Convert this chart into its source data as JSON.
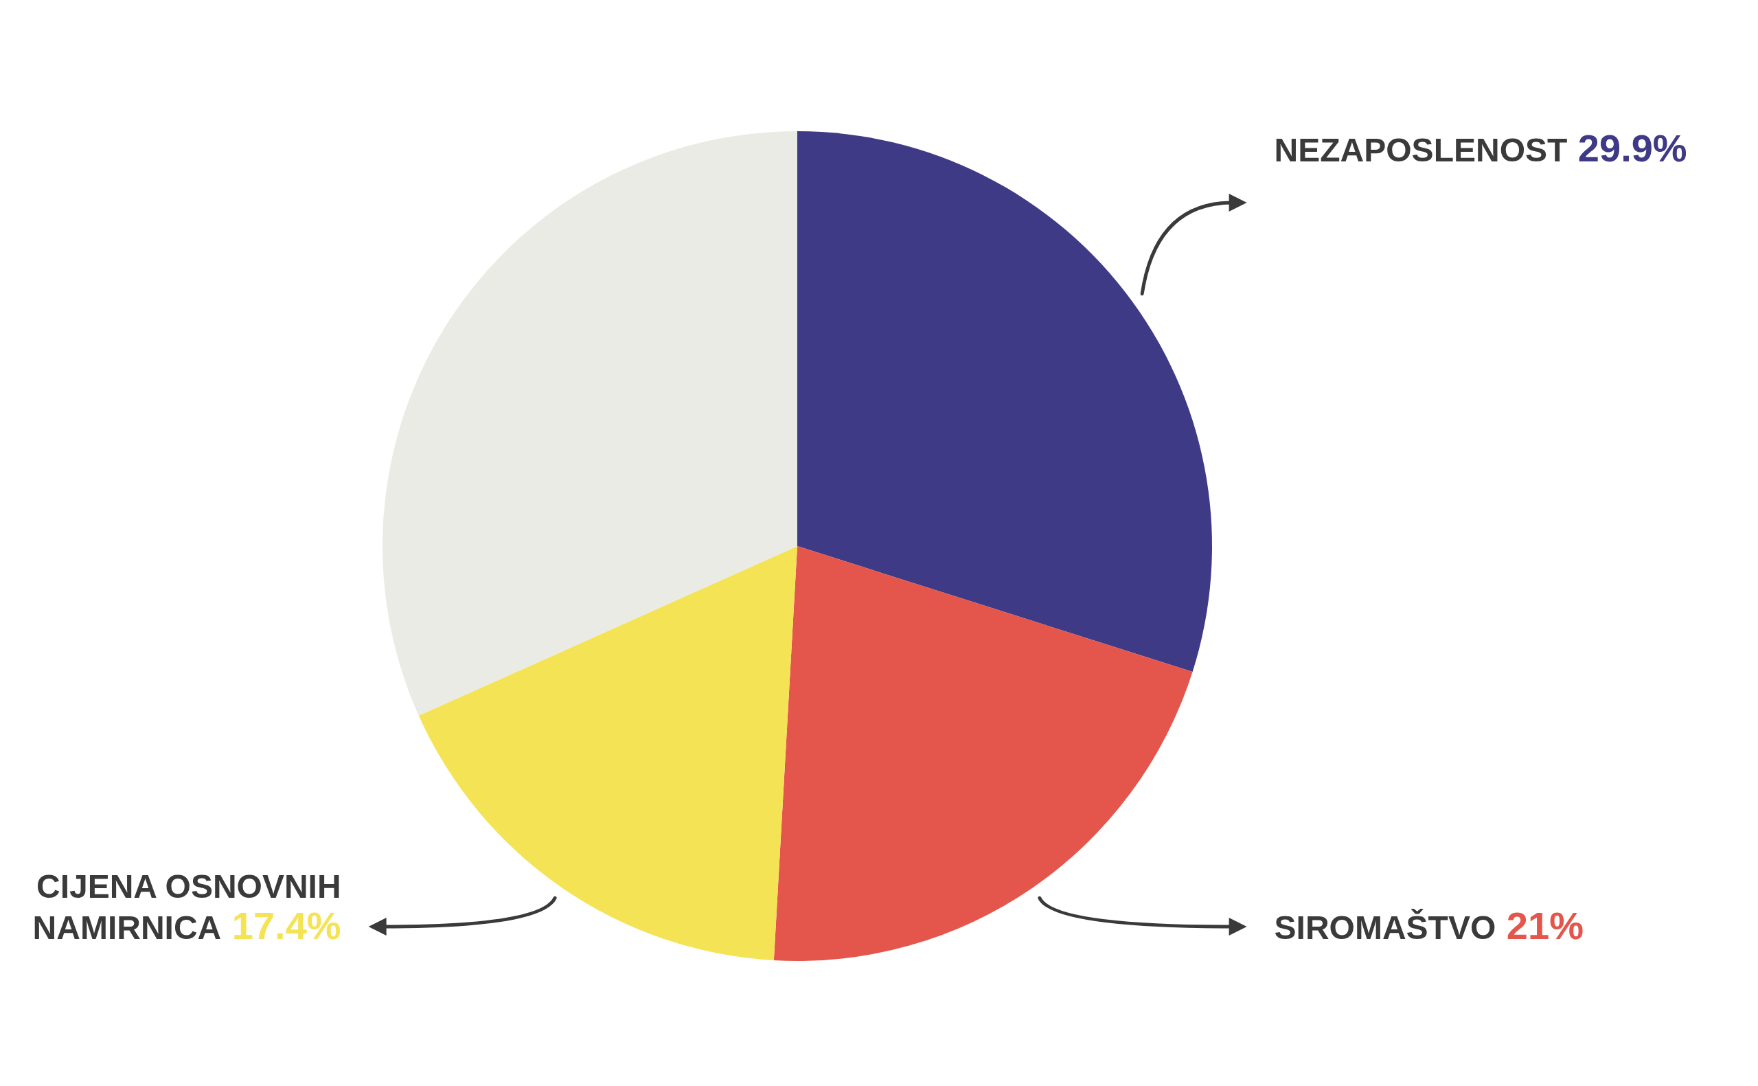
{
  "chart_data": {
    "type": "pie",
    "categories": [
      "NEZAPOSLENOST",
      "SIROMAŠTVO",
      "CIJENA OSNOVNIH NAMIRNICA",
      null
    ],
    "values": [
      29.9,
      21,
      17.4,
      31.7
    ],
    "colors": [
      "#3f3a86",
      "#e4554b",
      "#f5e356",
      "#ebebe6"
    ],
    "value_labels": [
      "29.9%",
      "21%",
      "17.4%",
      null
    ]
  }
}
